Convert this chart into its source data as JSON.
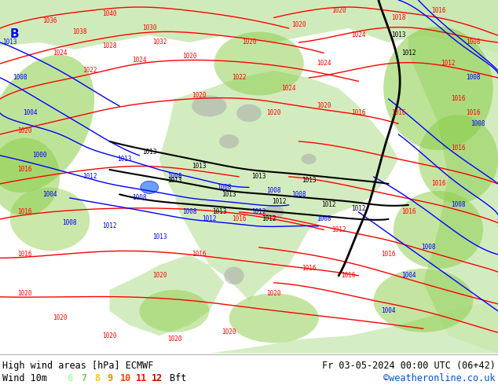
{
  "title_left": "High wind areas [hPa] ECMWF",
  "title_right": "Fr 03-05-2024 00:00 UTC (06+42)",
  "legend_label": "Wind 10m",
  "legend_values": [
    "6",
    "7",
    "8",
    "9",
    "10",
    "11",
    "12"
  ],
  "legend_unit": "Bft",
  "legend_colors": [
    "#aaffaa",
    "#77cc55",
    "#ffcc00",
    "#ff8800",
    "#ff4400",
    "#ff1100",
    "#cc0000"
  ],
  "copyright": "©weatheronline.co.uk",
  "bg_color": "#ffffff",
  "map_bg": "#f5f5f5",
  "bottom_bar_color": "#ffffff",
  "font_color": "#000000",
  "title_fontsize": 8.5,
  "legend_fontsize": 8.5,
  "copyright_color": "#0055cc",
  "figsize": [
    6.34,
    4.9
  ],
  "dpi": 100,
  "land_green": "#c8e8b0",
  "land_bright_green": "#88cc44",
  "sea_color": "#e8f0e8",
  "isobar_red": "#ff0000",
  "isobar_blue": "#0000ff",
  "isobar_black": "#000000",
  "gray_terrain": "#aaaaaa",
  "label_fontsize": 5.5
}
